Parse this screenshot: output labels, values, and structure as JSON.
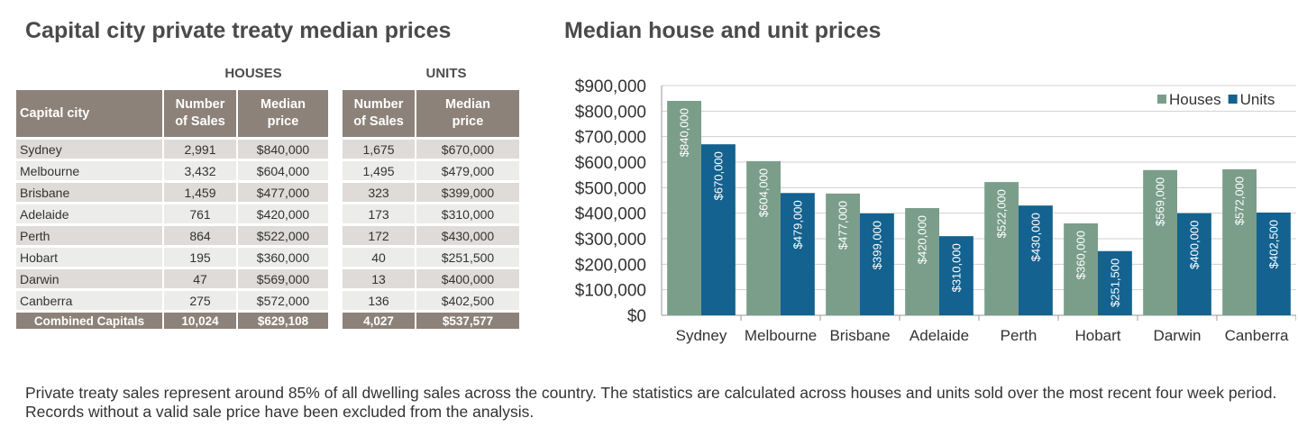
{
  "left_title": "Capital city private treaty median prices",
  "right_title": "Median house and unit prices",
  "table": {
    "group_houses": "HOUSES",
    "group_units": "UNITS",
    "col_city": "Capital city",
    "col_sales_1": "Number",
    "col_sales_2": "of Sales",
    "col_price_1": "Median",
    "col_price_2": "price",
    "rows": [
      {
        "city": "Sydney",
        "h_sales": "2,991",
        "h_price": "$840,000",
        "u_sales": "1,675",
        "u_price": "$670,000"
      },
      {
        "city": "Melbourne",
        "h_sales": "3,432",
        "h_price": "$604,000",
        "u_sales": "1,495",
        "u_price": "$479,000"
      },
      {
        "city": "Brisbane",
        "h_sales": "1,459",
        "h_price": "$477,000",
        "u_sales": "323",
        "u_price": "$399,000"
      },
      {
        "city": "Adelaide",
        "h_sales": "761",
        "h_price": "$420,000",
        "u_sales": "173",
        "u_price": "$310,000"
      },
      {
        "city": "Perth",
        "h_sales": "864",
        "h_price": "$522,000",
        "u_sales": "172",
        "u_price": "$430,000"
      },
      {
        "city": "Hobart",
        "h_sales": "195",
        "h_price": "$360,000",
        "u_sales": "40",
        "u_price": "$251,500"
      },
      {
        "city": "Darwin",
        "h_sales": "47",
        "h_price": "$569,000",
        "u_sales": "13",
        "u_price": "$400,000"
      },
      {
        "city": "Canberra",
        "h_sales": "275",
        "h_price": "$572,000",
        "u_sales": "136",
        "u_price": "$402,500"
      }
    ],
    "total": {
      "city": "Combined Capitals",
      "h_sales": "10,024",
      "h_price": "$629,108",
      "u_sales": "4,027",
      "u_price": "$537,577"
    }
  },
  "chart_data": {
    "type": "bar",
    "categories": [
      "Sydney",
      "Melbourne",
      "Brisbane",
      "Adelaide",
      "Perth",
      "Hobart",
      "Darwin",
      "Canberra"
    ],
    "series": [
      {
        "name": "Houses",
        "values": [
          840000,
          604000,
          477000,
          420000,
          522000,
          360000,
          569000,
          572000
        ],
        "labels": [
          "$840,000",
          "$604,000",
          "$477,000",
          "$420,000",
          "$522,000",
          "$360,000",
          "$569,000",
          "$572,000"
        ],
        "color": "#7a9e8a"
      },
      {
        "name": "Units",
        "values": [
          670000,
          479000,
          399000,
          310000,
          430000,
          251500,
          400000,
          402500
        ],
        "labels": [
          "$670,000",
          "$479,000",
          "$399,000",
          "$310,000",
          "$430,000",
          "$251,500",
          "$400,000",
          "$402,500"
        ],
        "color": "#13628f"
      }
    ],
    "ylim": [
      0,
      900000
    ],
    "yticks": [
      "$0",
      "$100,000",
      "$200,000",
      "$300,000",
      "$400,000",
      "$500,000",
      "$600,000",
      "$700,000",
      "$800,000",
      "$900,000"
    ],
    "grid": true,
    "legend_position": "top-right"
  },
  "footnote": "Private treaty sales represent around 85% of all dwelling sales across the country.  The statistics are calculated across houses and units sold over the most recent four week period. Records without a valid sale price have been excluded from the analysis."
}
